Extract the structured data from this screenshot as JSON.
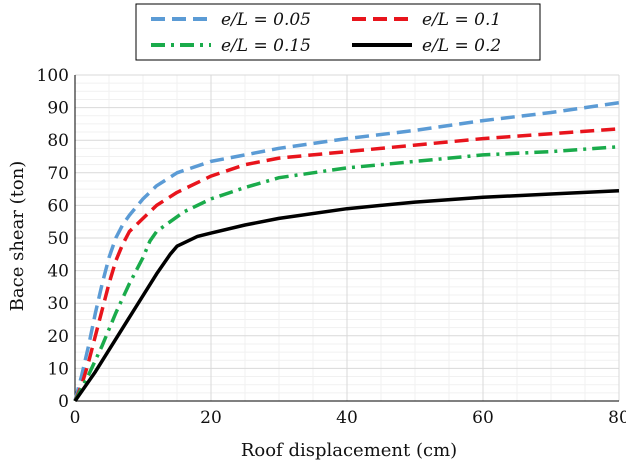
{
  "chart_data": {
    "type": "line",
    "xlabel": "Roof displacement (cm)",
    "ylabel": "Bace shear (ton)",
    "xlim": [
      0,
      80
    ],
    "ylim": [
      0,
      100
    ],
    "x_ticks": [
      "0",
      "20",
      "40",
      "60",
      "80"
    ],
    "y_ticks": [
      "0",
      "10",
      "20",
      "30",
      "40",
      "50",
      "60",
      "70",
      "80",
      "90",
      "100"
    ],
    "grid": true,
    "legend_position": "top-center",
    "series": [
      {
        "name": "e/L = 0.05",
        "color": "#5b9bd5",
        "style": "dashed",
        "points": [
          [
            0,
            0
          ],
          [
            1,
            8
          ],
          [
            2,
            17
          ],
          [
            3,
            27
          ],
          [
            4,
            36
          ],
          [
            5,
            44
          ],
          [
            6,
            50
          ],
          [
            7,
            54
          ],
          [
            8,
            57
          ],
          [
            10,
            62
          ],
          [
            12,
            66
          ],
          [
            15,
            70
          ],
          [
            20,
            73.5
          ],
          [
            25,
            75.5
          ],
          [
            30,
            77.5
          ],
          [
            40,
            80.5
          ],
          [
            50,
            83
          ],
          [
            60,
            86
          ],
          [
            70,
            88.5
          ],
          [
            80,
            91.5
          ]
        ]
      },
      {
        "name": "e/L = 0.1",
        "color": "#e8141c",
        "style": "dashed",
        "points": [
          [
            0,
            0
          ],
          [
            1,
            5
          ],
          [
            2,
            12
          ],
          [
            3,
            20
          ],
          [
            4,
            28
          ],
          [
            5,
            36
          ],
          [
            6,
            43
          ],
          [
            7,
            48
          ],
          [
            8,
            52
          ],
          [
            10,
            56
          ],
          [
            12,
            60
          ],
          [
            15,
            64
          ],
          [
            20,
            69
          ],
          [
            25,
            72.5
          ],
          [
            30,
            74.5
          ],
          [
            40,
            76.5
          ],
          [
            50,
            78.5
          ],
          [
            60,
            80.5
          ],
          [
            70,
            82
          ],
          [
            80,
            83.5
          ]
        ]
      },
      {
        "name": "e/L = 0.15",
        "color": "#1aab4b",
        "style": "dashdot",
        "points": [
          [
            0,
            0
          ],
          [
            2,
            8
          ],
          [
            4,
            17
          ],
          [
            6,
            27
          ],
          [
            8,
            36
          ],
          [
            10,
            44
          ],
          [
            11,
            49
          ],
          [
            12,
            52
          ],
          [
            14,
            55
          ],
          [
            16,
            58
          ],
          [
            20,
            62
          ],
          [
            25,
            65.5
          ],
          [
            30,
            68.5
          ],
          [
            40,
            71.5
          ],
          [
            50,
            73.5
          ],
          [
            60,
            75.5
          ],
          [
            70,
            76.5
          ],
          [
            80,
            78
          ]
        ]
      },
      {
        "name": "e/L = 0.2",
        "color": "#000000",
        "style": "solid",
        "points": [
          [
            0,
            0
          ],
          [
            3,
            9
          ],
          [
            6,
            19
          ],
          [
            9,
            29
          ],
          [
            12,
            39
          ],
          [
            14,
            45
          ],
          [
            15,
            47.5
          ],
          [
            16,
            48.5
          ],
          [
            18,
            50.5
          ],
          [
            20,
            51.5
          ],
          [
            25,
            54
          ],
          [
            30,
            56
          ],
          [
            40,
            59
          ],
          [
            50,
            61
          ],
          [
            60,
            62.5
          ],
          [
            70,
            63.5
          ],
          [
            80,
            64.5
          ]
        ]
      }
    ]
  }
}
